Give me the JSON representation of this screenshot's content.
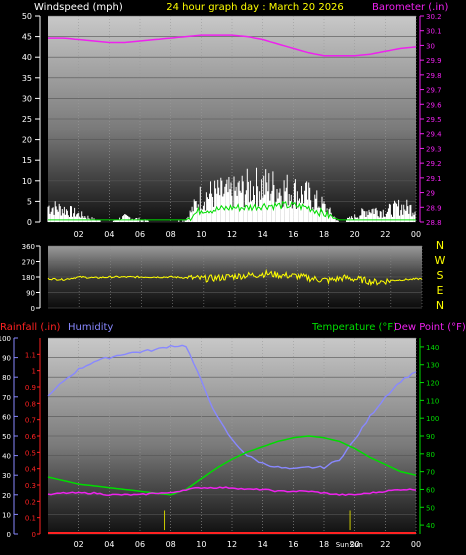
{
  "title": "24 hour graph day : March 20 2026",
  "colors": {
    "background": "#000000",
    "wind": "#ffffff",
    "gust": "#ffffff",
    "avg_wind": "#00dd00",
    "barometer": "#ee22ee",
    "direction": "#ffff00",
    "humidity": "#8888ff",
    "temperature": "#00dd00",
    "dewpoint": "#ee22ee",
    "rainfall": "#ff2222",
    "title": "#ffff00",
    "axis_text": "#ffffff"
  },
  "chart_data": [
    {
      "type": "line",
      "panel": "wind-barometer",
      "left_label": "Windspeed (mph)",
      "right_label": "Barometer (.in)",
      "x_ticks": [
        "02",
        "04",
        "06",
        "08",
        "10",
        "12",
        "14",
        "16",
        "18",
        "20",
        "22",
        "00"
      ],
      "left_ticks": [
        0,
        5,
        10,
        15,
        20,
        25,
        30,
        35,
        40,
        45,
        50
      ],
      "right_ticks": [
        "28.8",
        "28.9",
        "29",
        "29.1",
        "29.2",
        "29.3",
        "29.4",
        "29.5",
        "29.6",
        "29.7",
        "29.8",
        "29.9",
        "30",
        "30.1",
        "30.2"
      ],
      "ylim_left": [
        0,
        50
      ],
      "ylim_right": [
        28.8,
        30.2
      ],
      "series": [
        {
          "name": "Barometer",
          "axis": "right",
          "x": [
            0,
            1,
            2,
            3,
            4,
            5,
            6,
            7,
            8,
            9,
            10,
            11,
            12,
            13,
            14,
            15,
            16,
            17,
            18,
            19,
            20,
            21,
            22,
            23,
            24
          ],
          "values": [
            30.05,
            30.05,
            30.04,
            30.03,
            30.02,
            30.02,
            30.03,
            30.04,
            30.05,
            30.06,
            30.07,
            30.07,
            30.07,
            30.06,
            30.04,
            30.01,
            29.98,
            29.95,
            29.93,
            29.93,
            29.93,
            29.94,
            29.96,
            29.98,
            29.99
          ]
        },
        {
          "name": "Wind gust",
          "axis": "left",
          "x": [
            0,
            1,
            2,
            3,
            4,
            5,
            6,
            7,
            8,
            9,
            10,
            11,
            12,
            13,
            14,
            15,
            16,
            17,
            18,
            19,
            20,
            21,
            22,
            23,
            24
          ],
          "values": [
            6,
            5,
            3,
            1,
            0,
            2,
            1,
            0,
            0,
            1,
            10,
            11,
            11,
            13,
            14,
            13,
            12,
            10,
            6,
            0,
            2,
            5,
            4,
            6,
            5
          ]
        },
        {
          "name": "Average wind",
          "axis": "left",
          "x": [
            0,
            1,
            2,
            3,
            4,
            5,
            6,
            7,
            8,
            9,
            10,
            11,
            12,
            13,
            14,
            15,
            16,
            17,
            18,
            19,
            20,
            21,
            22,
            23,
            24
          ],
          "values": [
            0.5,
            0.5,
            0.5,
            0.5,
            0.5,
            0.5,
            0.5,
            0.5,
            0.5,
            0.5,
            3,
            3,
            3.5,
            3.5,
            4,
            4,
            4,
            3.5,
            2,
            0.5,
            0.5,
            0.5,
            0.5,
            0.5,
            0.5
          ]
        }
      ]
    },
    {
      "type": "line",
      "panel": "wind-direction",
      "left_ticks": [
        0,
        90,
        180,
        270,
        360
      ],
      "right_labels": [
        "N",
        "W",
        "S",
        "E",
        "N"
      ],
      "ylim": [
        0,
        360
      ],
      "series": [
        {
          "name": "Wind direction",
          "x": [
            0,
            1,
            2,
            3,
            4,
            5,
            6,
            7,
            8,
            9,
            10,
            11,
            12,
            13,
            14,
            15,
            16,
            17,
            18,
            19,
            20,
            21,
            22,
            23,
            24
          ],
          "values": [
            170,
            165,
            180,
            175,
            180,
            180,
            180,
            180,
            180,
            175,
            170,
            175,
            185,
            190,
            200,
            190,
            185,
            170,
            160,
            175,
            165,
            150,
            160,
            165,
            170
          ]
        }
      ]
    },
    {
      "type": "line",
      "panel": "temp-humidity-rain",
      "left_labels": [
        "Rainfall (.in)",
        "Humidity"
      ],
      "right_labels": [
        "Temperature (°F)",
        "Dew Point (°F)"
      ],
      "x_ticks": [
        "02",
        "04",
        "06",
        "08",
        "10",
        "12",
        "14",
        "16",
        "18",
        "20",
        "22",
        "00"
      ],
      "humidity_ticks": [
        0,
        10,
        20,
        30,
        40,
        50,
        60,
        70,
        80,
        90,
        100
      ],
      "rain_ticks": [
        "0",
        "0.1",
        "0.2",
        "0.3",
        "0.4",
        "0.5",
        "0.6",
        "0.7",
        "0.8",
        "0.9",
        "1",
        "1.1"
      ],
      "temp_ticks": [
        40,
        50,
        60,
        70,
        80,
        90,
        100,
        110,
        120,
        130,
        140
      ],
      "ylim_humidity": [
        0,
        100
      ],
      "ylim_rain": [
        0,
        1.2
      ],
      "ylim_temp": [
        35,
        145
      ],
      "annotations": [
        "Sunrise",
        "Sunset"
      ],
      "series": [
        {
          "name": "Humidity",
          "axis": "humidity",
          "x": [
            0,
            1,
            2,
            3,
            4,
            5,
            6,
            7,
            8,
            9,
            10,
            11,
            12,
            13,
            14,
            15,
            16,
            17,
            18,
            19,
            20,
            21,
            22,
            23,
            24
          ],
          "values": [
            70,
            78,
            84,
            88,
            90,
            92,
            93,
            94,
            96,
            96,
            78,
            60,
            48,
            40,
            36,
            34,
            33,
            34,
            34,
            38,
            48,
            60,
            70,
            78,
            83
          ]
        },
        {
          "name": "Temperature",
          "axis": "temp",
          "x": [
            0,
            1,
            2,
            3,
            4,
            5,
            6,
            7,
            8,
            9,
            10,
            11,
            12,
            13,
            14,
            15,
            16,
            17,
            18,
            19,
            20,
            21,
            22,
            23,
            24
          ],
          "values": [
            67,
            65,
            63,
            62,
            61,
            60,
            59,
            58,
            57,
            60,
            66,
            72,
            77,
            81,
            84,
            87,
            89,
            90,
            89,
            87,
            83,
            78,
            74,
            70,
            68
          ]
        },
        {
          "name": "Dew Point",
          "axis": "temp",
          "x": [
            0,
            1,
            2,
            3,
            4,
            5,
            6,
            7,
            8,
            9,
            10,
            11,
            12,
            13,
            14,
            15,
            16,
            17,
            18,
            19,
            20,
            21,
            22,
            23,
            24
          ],
          "values": [
            57,
            58,
            58,
            58,
            57,
            57,
            57,
            58,
            58,
            60,
            61,
            61,
            61,
            60,
            60,
            59,
            59,
            59,
            58,
            57,
            57,
            58,
            59,
            60,
            60
          ]
        },
        {
          "name": "Rainfall",
          "axis": "rain",
          "x": [
            0,
            24
          ],
          "values": [
            0,
            0
          ]
        }
      ]
    }
  ]
}
